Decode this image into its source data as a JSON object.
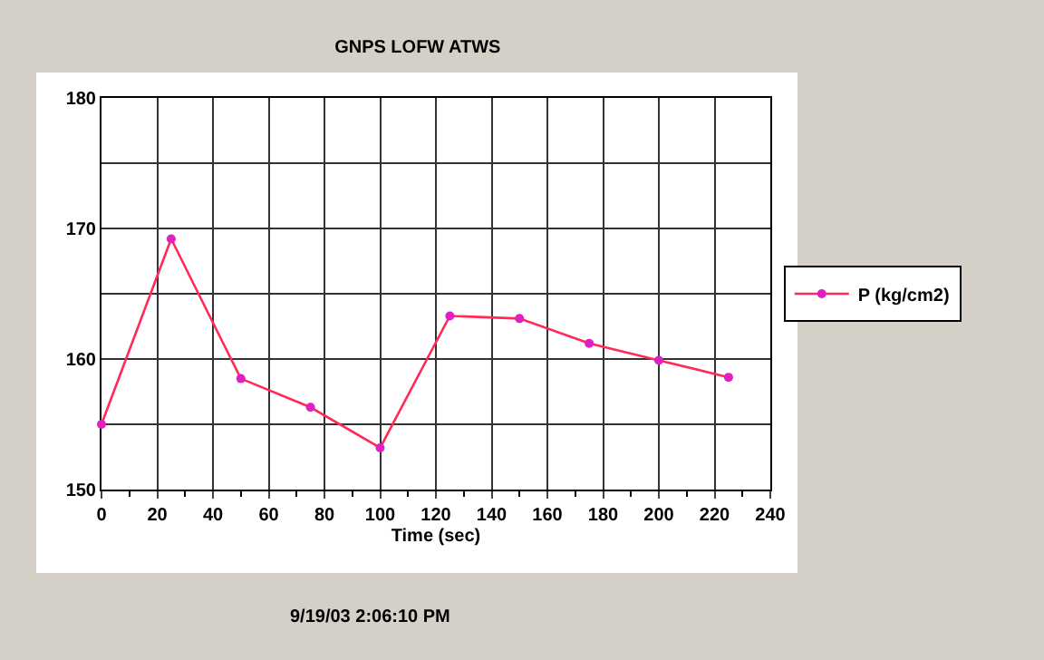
{
  "chart_data": {
    "type": "line",
    "title": "GNPS LOFW ATWS",
    "xlabel": "Time (sec)",
    "x": [
      0,
      25,
      50,
      75,
      100,
      125,
      150,
      175,
      200,
      225
    ],
    "series": [
      {
        "name": "P (kg/cm2)",
        "color": "#ff2a55",
        "values": [
          155,
          169.2,
          158.5,
          156.3,
          153.2,
          163.3,
          163.1,
          161.2,
          159.9,
          158.6
        ]
      }
    ],
    "xlim": [
      0,
      240
    ],
    "xticks": [
      0,
      20,
      40,
      60,
      80,
      100,
      120,
      140,
      160,
      180,
      200,
      220,
      240
    ],
    "ylim": [
      150,
      180
    ],
    "yticks": [
      150,
      {
        "value": 155,
        "label": null
      },
      160,
      {
        "value": 165,
        "label": null
      },
      170,
      {
        "value": 175,
        "label": null
      },
      180
    ],
    "grid": true,
    "legend": "right",
    "marker": "circle",
    "line_style": "solid",
    "annotations": [
      "9/19/03 2:06:10 PM"
    ]
  }
}
